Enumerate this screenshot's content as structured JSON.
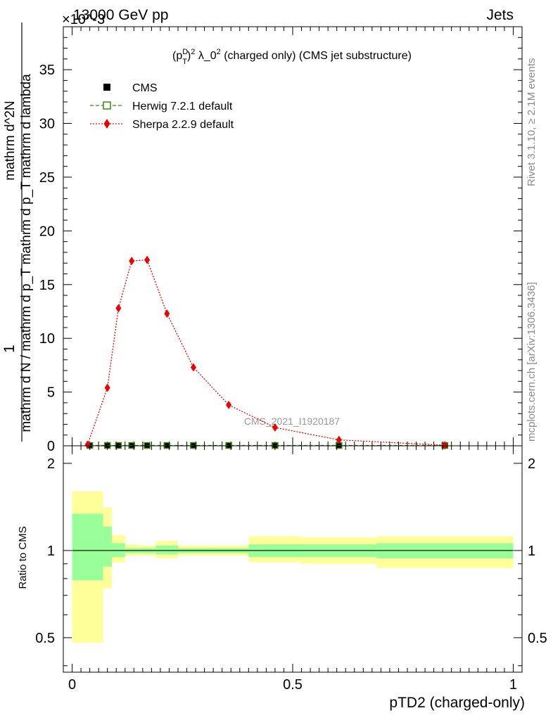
{
  "header": {
    "energy_label": "13000 GeV pp",
    "category_label": "Jets",
    "exponent_label": "×10^-3"
  },
  "side_labels": {
    "rivet": "Rivet 3.1.10, ≥ 2.1M events",
    "mcplots": "mcplots.cern.ch [arXiv:1306.3436]"
  },
  "watermark": "CMS_2021_I1920187",
  "chart_data": [
    {
      "type": "line",
      "title": "(p_T^D)^2 λ_0^2 (charged only) (CMS jet substructure)",
      "ylabel": "1 / mathrm d N / mathrm d p_T mathrm d p_T mathrm d lambda · mathrm d^2N",
      "ylabel_lines": [
        "1",
        "mathrm d N / mathrm d p_T mathrm d p_T mathrm d lambda",
        "mathrm d^2N"
      ],
      "xlim": [
        -0.02,
        1.02
      ],
      "ylim": [
        0,
        39
      ],
      "yticks": [
        0,
        5,
        10,
        15,
        20,
        25,
        30,
        35
      ],
      "y_scale_note": "×10^-3",
      "legend_position": "top-left",
      "series": [
        {
          "name": "CMS",
          "color": "#000000",
          "marker": "square",
          "x": [
            0.04,
            0.08,
            0.105,
            0.135,
            0.17,
            0.215,
            0.275,
            0.355,
            0.46,
            0.605,
            0.845
          ],
          "values": [
            0.03,
            0.03,
            0.03,
            0.03,
            0.03,
            0.03,
            0.03,
            0.03,
            0.03,
            0.03,
            0.03
          ]
        },
        {
          "name": "Herwig 7.2.1 default",
          "color": "#3a8a10",
          "marker": "open-square",
          "line": "dashed",
          "x": [
            0.04,
            0.08,
            0.105,
            0.135,
            0.17,
            0.215,
            0.275,
            0.355,
            0.46,
            0.605,
            0.845
          ],
          "values": [
            0.03,
            0.03,
            0.03,
            0.03,
            0.03,
            0.03,
            0.03,
            0.03,
            0.03,
            0.03,
            0.03
          ]
        },
        {
          "name": "Sherpa 2.2.9 default",
          "color": "#ee0000",
          "marker": "diamond",
          "line": "dotted",
          "x": [
            0.035,
            0.08,
            0.105,
            0.135,
            0.17,
            0.215,
            0.275,
            0.355,
            0.46,
            0.605,
            0.845
          ],
          "values": [
            0.1,
            5.4,
            12.8,
            17.2,
            17.3,
            12.3,
            7.3,
            3.8,
            1.7,
            0.55,
            0.05
          ]
        }
      ]
    },
    {
      "type": "area",
      "ylabel": "Ratio to CMS",
      "xlabel": "pTD2 (charged-only)",
      "xlim": [
        -0.02,
        1.02
      ],
      "xticks": [
        0,
        0.5,
        1
      ],
      "xtick_labels": [
        "0",
        "0.5",
        "1"
      ],
      "ylim": [
        0.38,
        2.3
      ],
      "yticks": [
        0.5,
        1,
        2
      ],
      "ytick_labels": [
        "0.5",
        "1",
        "2"
      ],
      "reference_line": 1,
      "bands": {
        "bin_edges": [
          0,
          0.07,
          0.09,
          0.12,
          0.15,
          0.19,
          0.24,
          0.31,
          0.4,
          0.52,
          0.69,
          1.0
        ],
        "yellow": {
          "color": "#ffff99",
          "low": [
            0.48,
            0.74,
            0.91,
            0.96,
            0.96,
            0.94,
            0.96,
            0.96,
            0.91,
            0.9,
            0.87
          ],
          "high": [
            1.6,
            1.41,
            1.13,
            1.05,
            1.04,
            1.08,
            1.04,
            1.04,
            1.12,
            1.11,
            1.12
          ]
        },
        "green": {
          "color": "#99ff99",
          "low": [
            0.79,
            0.88,
            0.95,
            0.98,
            0.98,
            0.97,
            0.98,
            0.98,
            0.95,
            0.95,
            0.94
          ],
          "high": [
            1.34,
            1.21,
            1.06,
            1.02,
            1.02,
            1.04,
            1.02,
            1.02,
            1.05,
            1.05,
            1.06
          ]
        }
      }
    }
  ]
}
